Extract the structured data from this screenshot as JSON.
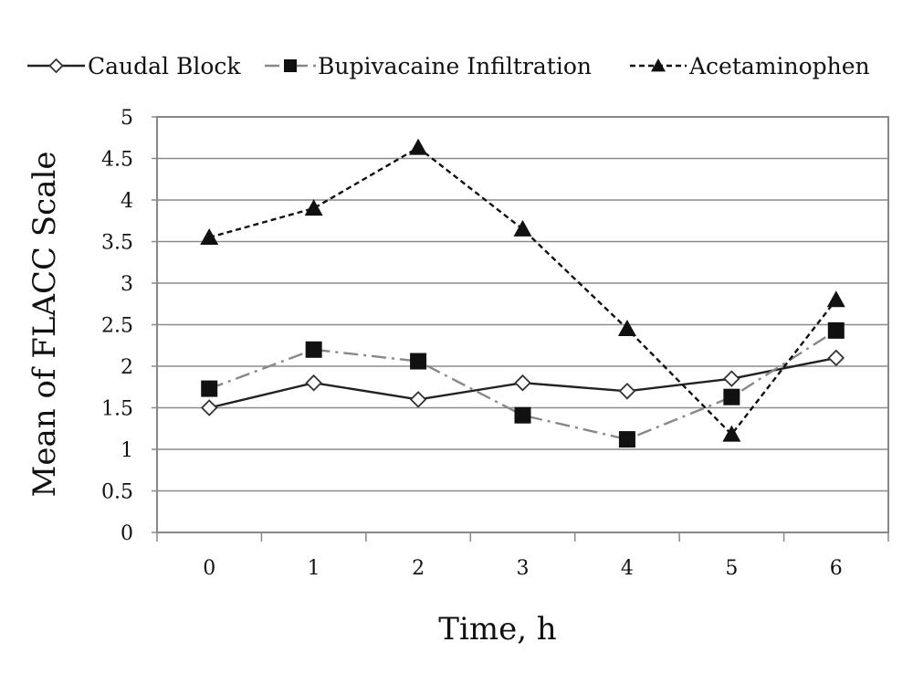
{
  "chart_data": {
    "type": "line",
    "title": "",
    "xlabel": "Time, h",
    "ylabel": "Mean of FLACC Scale",
    "categories": [
      "0",
      "1",
      "2",
      "3",
      "4",
      "5",
      "6"
    ],
    "ylim": [
      0,
      5
    ],
    "yticks": [
      "0",
      "0.5",
      "1",
      "1.5",
      "2",
      "2.5",
      "3",
      "3.5",
      "4",
      "4.5",
      "5"
    ],
    "grid": "horizontal",
    "legend_position": "top",
    "series": [
      {
        "name": "Caudal Block",
        "marker": "open-diamond",
        "line": "solid",
        "color": "#222222",
        "values": [
          1.5,
          1.8,
          1.6,
          1.8,
          1.7,
          1.85,
          2.1
        ]
      },
      {
        "name": "Bupivacaine Infiltration",
        "marker": "filled-square",
        "line": "dash-dot",
        "color": "#888888",
        "values": [
          1.73,
          2.2,
          2.06,
          1.41,
          1.12,
          1.63,
          2.43
        ]
      },
      {
        "name": "Acetaminophen",
        "marker": "filled-triangle",
        "line": "dashed",
        "color": "#111111",
        "values": [
          3.55,
          3.9,
          4.63,
          3.65,
          2.45,
          1.18,
          2.8
        ]
      }
    ]
  }
}
